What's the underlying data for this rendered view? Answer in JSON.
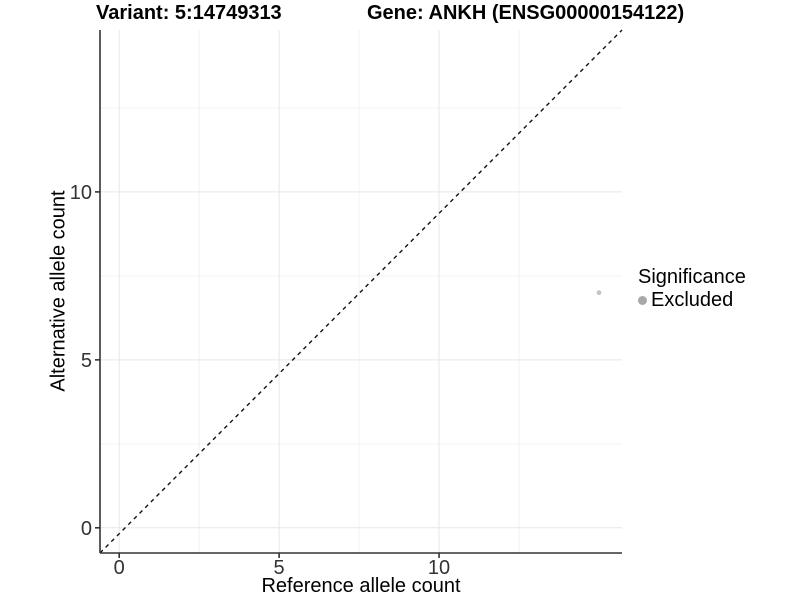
{
  "titles": {
    "variant": "Variant: 5:14749313",
    "gene": "Gene: ANKH (ENSG00000154122)"
  },
  "legend": {
    "title": "Significance",
    "items": [
      {
        "label": "Excluded",
        "color": "#a8a8a8"
      }
    ]
  },
  "chart_data": {
    "type": "scatter",
    "title_left": "Variant: 5:14749313",
    "title_right": "Gene: ANKH (ENSG00000154122)",
    "xlabel": "Reference allele count",
    "ylabel": "Alternative allele count",
    "xlim": [
      -0.6,
      15.72
    ],
    "ylim": [
      -0.75,
      14.82
    ],
    "x_ticks": [
      0,
      5,
      10
    ],
    "y_ticks": [
      0,
      5,
      10
    ],
    "x_minor_ticks": [
      2.5,
      7.5,
      12.5
    ],
    "y_minor_ticks": [
      2.5,
      7.5,
      12.5
    ],
    "grid": "major+minor, very light gray on white",
    "legend_position": "right-middle",
    "reference_line": {
      "meaning": "y = x identity",
      "style": "dashed",
      "color": "#111111"
    },
    "series": [
      {
        "name": "Excluded",
        "marker": "circle",
        "color": "#c4c4c4",
        "points": [
          {
            "x": 15,
            "y": 7
          }
        ]
      }
    ],
    "style_colors": {
      "grid_major": "#e7e7e7",
      "grid_minor": "#f2f2f2",
      "axis_line": "#333333",
      "tick_text": "#333333"
    }
  }
}
